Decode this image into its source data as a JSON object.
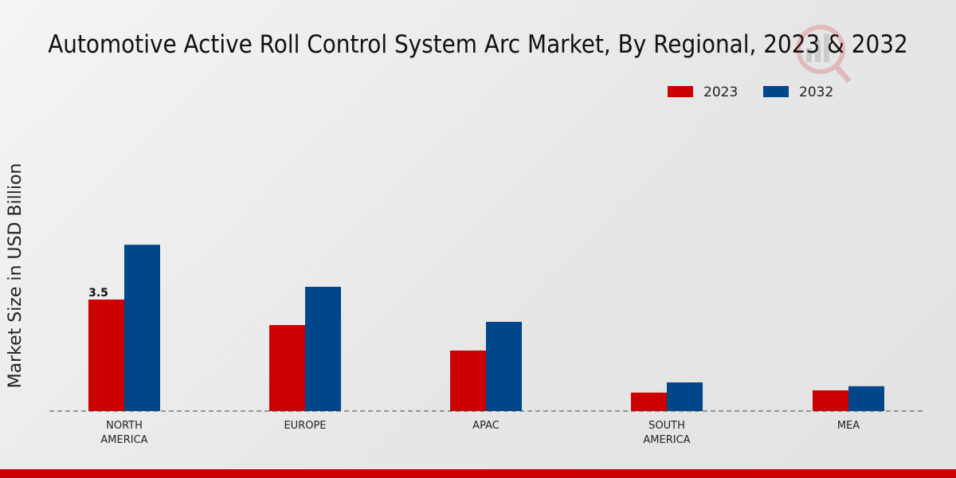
{
  "chart_data": {
    "type": "bar",
    "title": "Automotive Active Roll Control System Arc Market, By Regional, 2023 & 2032",
    "xlabel": "",
    "ylabel": "Market Size in USD Billion",
    "categories": [
      "NORTH\nAMERICA",
      "EUROPE",
      "APAC",
      "SOUTH\nAMERICA",
      "MEA"
    ],
    "series": [
      {
        "name": "2023",
        "color": "#cc0000",
        "values": [
          3.5,
          2.7,
          1.9,
          0.58,
          0.65
        ]
      },
      {
        "name": "2032",
        "color": "#00468b",
        "values": [
          5.22,
          3.9,
          2.8,
          0.9,
          0.78
        ]
      }
    ],
    "data_labels": [
      {
        "series": 0,
        "index": 0,
        "text": "3.5"
      }
    ],
    "ylim": [
      0,
      7
    ],
    "grid": false,
    "legend": "top-right"
  }
}
